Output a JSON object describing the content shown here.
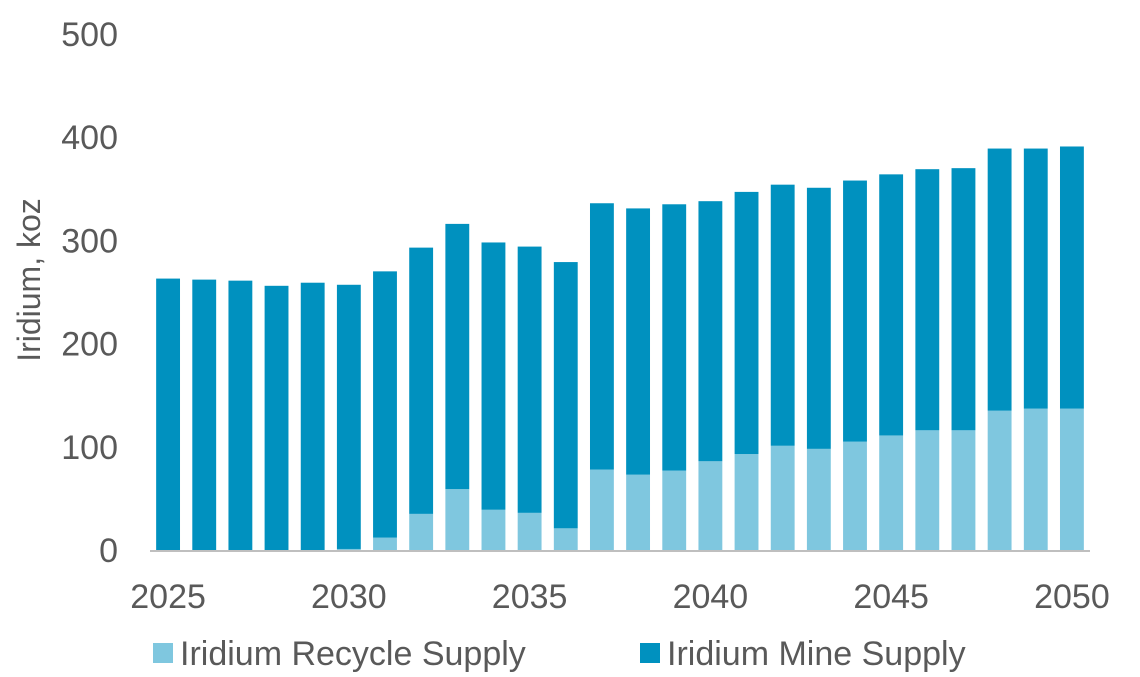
{
  "chart_data": {
    "type": "bar",
    "stacked": true,
    "title": "",
    "xlabel": "",
    "ylabel": "Iridium, koz",
    "ylim": [
      0,
      500
    ],
    "yticks": [
      0,
      100,
      200,
      300,
      400,
      500
    ],
    "xtick_labels": [
      "2025",
      "2030",
      "2035",
      "2040",
      "2045",
      "2050"
    ],
    "categories": [
      "2025",
      "2026",
      "2027",
      "2028",
      "2029",
      "2030",
      "2031",
      "2032",
      "2033",
      "2034",
      "2035",
      "2036",
      "2037",
      "2038",
      "2039",
      "2040",
      "2041",
      "2042",
      "2043",
      "2044",
      "2045",
      "2046",
      "2047",
      "2048",
      "2049",
      "2050"
    ],
    "series": [
      {
        "name": "Iridium Recycle Supply",
        "color": "#7fc7df",
        "values": [
          0,
          0,
          0,
          0,
          0,
          1,
          12,
          35,
          59,
          39,
          36,
          21,
          78,
          73,
          77,
          86,
          93,
          101,
          98,
          105,
          111,
          116,
          116,
          135,
          137,
          137
        ]
      },
      {
        "name": "Iridium Mine Supply",
        "color": "#0091bf",
        "values": [
          263,
          262,
          261,
          256,
          259,
          256,
          258,
          258,
          257,
          259,
          258,
          258,
          258,
          258,
          258,
          252,
          254,
          253,
          253,
          253,
          253,
          253,
          254,
          254,
          252,
          254
        ]
      }
    ],
    "legend_position": "bottom",
    "grid": false
  }
}
